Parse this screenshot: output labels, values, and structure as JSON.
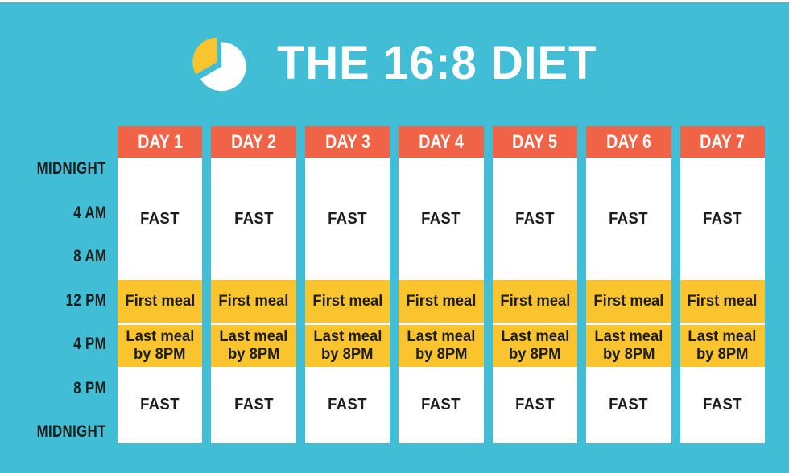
{
  "title": "THE 16:8 DIET",
  "icon": {
    "name": "pie-chart-icon",
    "pie_color": "#FFFFFF",
    "wedge_color": "#FAC42E"
  },
  "colors": {
    "background": "#41BDD6",
    "day_header": "#F06347",
    "meal_cell": "#FAC42E",
    "fast_cell": "#FFFFFF",
    "text_dark": "#1D1D1B",
    "text_light": "#FFFFFF"
  },
  "time_labels": [
    "MIDNIGHT",
    "4 AM",
    "8 AM",
    "12 PM",
    "4 PM",
    "8 PM",
    "MIDNIGHT"
  ],
  "days": [
    "DAY 1",
    "DAY 2",
    "DAY 3",
    "DAY 4",
    "DAY 5",
    "DAY 6",
    "DAY 7"
  ],
  "column_cells": [
    {
      "kind": "fast",
      "name": "cell-fast-morning",
      "lines": [
        "FAST"
      ]
    },
    {
      "kind": "meal",
      "name": "cell-first-meal",
      "lines": [
        "First meal"
      ]
    },
    {
      "kind": "meal",
      "name": "cell-last-meal",
      "lines": [
        "Last meal",
        "by 8PM"
      ]
    },
    {
      "kind": "fast",
      "name": "cell-fast-evening",
      "lines": [
        "FAST"
      ]
    }
  ]
}
